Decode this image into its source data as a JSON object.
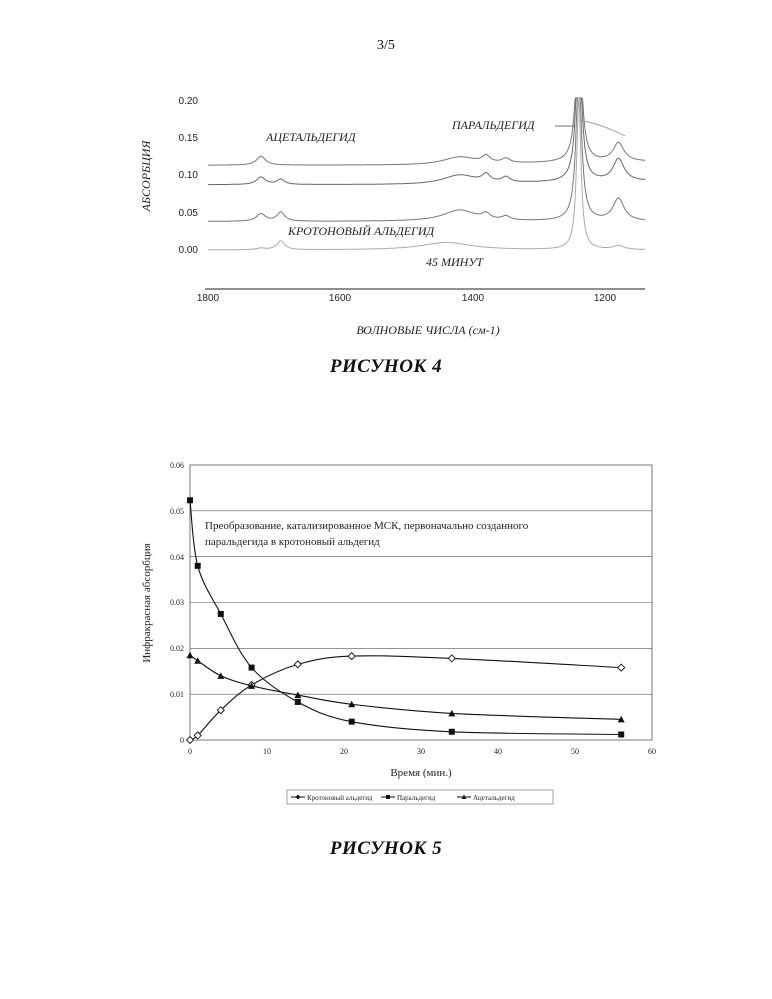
{
  "page_number": "3/5",
  "figure4": {
    "caption": "РИСУНОК 4",
    "ylabel": "АБСОРБЦИЯ",
    "xlabel": "ВОЛНОВЫЕ ЧИСЛА (см-1)",
    "annotations": {
      "acetaldehyde": "АЦЕТАЛЬДЕГИД",
      "paraldehyde": "ПАРАЛЬДЕГИД",
      "crotonaldehyde": "КРОТОНОВЫЙ АЛЬДЕГИД",
      "time": "45 МИНУТ"
    },
    "y_ticks": [
      "0.20",
      "0.15",
      "0.10",
      "0.05",
      "0.00"
    ],
    "x_ticks": [
      "1800",
      "1600",
      "1400",
      "1200"
    ]
  },
  "figure5": {
    "caption": "РИСУНОК 5",
    "annotation": [
      "Преобразование, катализированное МСК, первоначально созданного",
      "паральдегида в кротоновый альдегид"
    ]
  },
  "chart_data": [
    {
      "type": "line",
      "title": "",
      "xlabel": "ВОЛНОВЫЕ ЧИСЛА (см-1)",
      "ylabel": "АБСОРБЦИЯ",
      "xlim": [
        1800,
        1140
      ],
      "ylim": [
        -0.02,
        0.2
      ],
      "x_reversed": true,
      "grid": false,
      "legend": "none",
      "series_count": 4,
      "series_baselines": [
        0.113,
        0.087,
        0.038,
        0.0
      ],
      "peaks_wavenumber": [
        1720,
        1690,
        1420,
        1380,
        1350,
        1240,
        1180
      ]
    },
    {
      "type": "line",
      "title": "",
      "xlabel": "Время (мин.)",
      "ylabel": "Инфракрасная абсорбция",
      "xlim": [
        0,
        60
      ],
      "ylim": [
        0,
        0.06
      ],
      "x_ticks": [
        "0",
        "10",
        "20",
        "30",
        "40",
        "50",
        "60"
      ],
      "y_ticks": [
        "0",
        "0.01",
        "0.02",
        "0.03",
        "0.04",
        "0.05",
        "0.06"
      ],
      "grid": true,
      "legend": "bottom",
      "series": [
        {
          "name": "Кротоновый альдегид",
          "marker": "diamond",
          "x": [
            0,
            1,
            4,
            8,
            14,
            21,
            34,
            56
          ],
          "y": [
            0.0,
            0.001,
            0.0065,
            0.012,
            0.0165,
            0.0183,
            0.0178,
            0.0158
          ]
        },
        {
          "name": "Паральдегид",
          "marker": "square",
          "x": [
            0,
            1,
            4,
            8,
            14,
            21,
            34,
            56
          ],
          "y": [
            0.0523,
            0.038,
            0.0275,
            0.0158,
            0.0083,
            0.004,
            0.0018,
            0.0012
          ]
        },
        {
          "name": "Ацетальдегид",
          "marker": "triangle",
          "x": [
            0,
            1,
            4,
            8,
            14,
            21,
            34,
            56
          ],
          "y": [
            0.0185,
            0.0173,
            0.014,
            0.0118,
            0.0098,
            0.0078,
            0.0058,
            0.0045
          ]
        }
      ]
    }
  ]
}
